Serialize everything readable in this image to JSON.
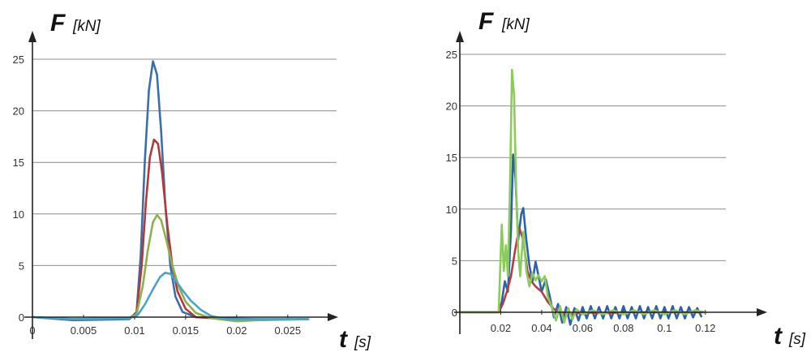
{
  "chart_data": [
    {
      "type": "line",
      "ylabel": "F",
      "yunit": "[kN]",
      "xlabel": "t",
      "xunit": "[s]",
      "xlim": [
        0,
        0.027
      ],
      "ylim": [
        0,
        25
      ],
      "x_ticks": [
        "0",
        "0.005",
        "0.01",
        "0.015",
        "0.02",
        "0.025"
      ],
      "y_ticks": [
        "0",
        "5",
        "10",
        "15",
        "20",
        "25"
      ],
      "grid": "horizontal",
      "series": [
        {
          "color": "#3a6fa8",
          "points": [
            [
              0,
              0
            ],
            [
              0.004,
              -0.3
            ],
            [
              0.0095,
              -0.2
            ],
            [
              0.0102,
              0.5
            ],
            [
              0.0106,
              6
            ],
            [
              0.011,
              15
            ],
            [
              0.0114,
              22
            ],
            [
              0.0118,
              24.8
            ],
            [
              0.0122,
              23.5
            ],
            [
              0.0126,
              18
            ],
            [
              0.013,
              11
            ],
            [
              0.0135,
              5
            ],
            [
              0.014,
              2
            ],
            [
              0.0147,
              0.5
            ],
            [
              0.016,
              0
            ],
            [
              0.018,
              -0.1
            ],
            [
              0.022,
              -0.2
            ],
            [
              0.027,
              -0.2
            ]
          ]
        },
        {
          "color": "#b03a3a",
          "points": [
            [
              0,
              0
            ],
            [
              0.004,
              -0.2
            ],
            [
              0.0095,
              -0.1
            ],
            [
              0.0102,
              0.4
            ],
            [
              0.0107,
              5
            ],
            [
              0.0111,
              11
            ],
            [
              0.0115,
              15.5
            ],
            [
              0.0119,
              17.2
            ],
            [
              0.0123,
              16.8
            ],
            [
              0.0127,
              14
            ],
            [
              0.0132,
              9
            ],
            [
              0.0137,
              5
            ],
            [
              0.0142,
              2.5
            ],
            [
              0.015,
              0.8
            ],
            [
              0.016,
              0
            ],
            [
              0.018,
              -0.1
            ],
            [
              0.021,
              -0.3
            ],
            [
              0.027,
              -0.2
            ]
          ]
        },
        {
          "color": "#8bb04c",
          "points": [
            [
              0,
              0
            ],
            [
              0.004,
              -0.2
            ],
            [
              0.0095,
              -0.1
            ],
            [
              0.0102,
              0.3
            ],
            [
              0.0108,
              3
            ],
            [
              0.0113,
              6.5
            ],
            [
              0.0118,
              9.2
            ],
            [
              0.0122,
              9.9
            ],
            [
              0.0126,
              9.4
            ],
            [
              0.0131,
              7.5
            ],
            [
              0.0137,
              5
            ],
            [
              0.0143,
              3
            ],
            [
              0.015,
              1.5
            ],
            [
              0.016,
              0.4
            ],
            [
              0.0175,
              -0.1
            ],
            [
              0.02,
              -0.4
            ],
            [
              0.022,
              -0.3
            ],
            [
              0.027,
              -0.2
            ]
          ]
        },
        {
          "color": "#4aa3c8",
          "points": [
            [
              0,
              0
            ],
            [
              0.004,
              -0.2
            ],
            [
              0.0095,
              -0.1
            ],
            [
              0.0103,
              0.2
            ],
            [
              0.011,
              1.2
            ],
            [
              0.0118,
              2.7
            ],
            [
              0.0125,
              3.9
            ],
            [
              0.013,
              4.3
            ],
            [
              0.0135,
              4.2
            ],
            [
              0.014,
              3.6
            ],
            [
              0.0147,
              2.6
            ],
            [
              0.0155,
              1.6
            ],
            [
              0.0165,
              0.7
            ],
            [
              0.0175,
              0.1
            ],
            [
              0.019,
              -0.2
            ],
            [
              0.027,
              -0.2
            ]
          ]
        }
      ]
    },
    {
      "type": "line",
      "ylabel": "F",
      "yunit": "[kN]",
      "xlabel": "t",
      "xunit": "[s]",
      "xlim": [
        0,
        0.13
      ],
      "ylim": [
        0,
        25
      ],
      "x_ticks": [
        "0.02",
        "0.04",
        "0.06",
        "0.08",
        "0.1",
        "0.12"
      ],
      "y_ticks": [
        "0",
        "5",
        "10",
        "15",
        "20",
        "25"
      ],
      "grid": "horizontal",
      "series": [
        {
          "color": "#2a62b0",
          "points": [
            [
              0,
              0
            ],
            [
              0.019,
              0
            ],
            [
              0.0205,
              1
            ],
            [
              0.022,
              3
            ],
            [
              0.0235,
              2
            ],
            [
              0.025,
              8
            ],
            [
              0.026,
              15.3
            ],
            [
              0.0272,
              13
            ],
            [
              0.0285,
              7
            ],
            [
              0.03,
              9.5
            ],
            [
              0.031,
              10.1
            ],
            [
              0.0325,
              7
            ],
            [
              0.034,
              4.5
            ],
            [
              0.0355,
              3
            ],
            [
              0.037,
              4.9
            ],
            [
              0.0385,
              3.5
            ],
            [
              0.04,
              2
            ],
            [
              0.042,
              3.2
            ],
            [
              0.044,
              1.5
            ],
            [
              0.046,
              -0.5
            ],
            [
              0.048,
              0.8
            ],
            [
              0.05,
              -1
            ],
            [
              0.052,
              0.5
            ],
            [
              0.054,
              -1.2
            ],
            [
              0.056,
              0.4
            ],
            [
              0.058,
              -0.8
            ],
            [
              0.06,
              0.5
            ],
            [
              0.062,
              -0.6
            ],
            [
              0.064,
              0.6
            ],
            [
              0.066,
              -0.6
            ],
            [
              0.068,
              0.5
            ],
            [
              0.07,
              -0.6
            ],
            [
              0.072,
              0.6
            ],
            [
              0.074,
              -0.6
            ],
            [
              0.076,
              0.5
            ],
            [
              0.078,
              -0.6
            ],
            [
              0.08,
              0.6
            ],
            [
              0.082,
              -0.6
            ],
            [
              0.084,
              0.5
            ],
            [
              0.086,
              -0.6
            ],
            [
              0.088,
              0.6
            ],
            [
              0.09,
              -0.6
            ],
            [
              0.092,
              0.5
            ],
            [
              0.094,
              -0.6
            ],
            [
              0.096,
              0.6
            ],
            [
              0.098,
              -0.6
            ],
            [
              0.1,
              0.5
            ],
            [
              0.102,
              -0.6
            ],
            [
              0.104,
              0.6
            ],
            [
              0.106,
              -0.6
            ],
            [
              0.108,
              0.5
            ],
            [
              0.11,
              -0.6
            ],
            [
              0.112,
              0.5
            ],
            [
              0.114,
              -0.5
            ],
            [
              0.116,
              0.4
            ],
            [
              0.118,
              -0.4
            ]
          ]
        },
        {
          "color": "#b04040",
          "points": [
            [
              0,
              0
            ],
            [
              0.019,
              0
            ],
            [
              0.021,
              0.8
            ],
            [
              0.023,
              2
            ],
            [
              0.025,
              3.5
            ],
            [
              0.027,
              6
            ],
            [
              0.029,
              8.2
            ],
            [
              0.031,
              7
            ],
            [
              0.033,
              4
            ],
            [
              0.035,
              3
            ],
            [
              0.037,
              2.5
            ],
            [
              0.04,
              2
            ],
            [
              0.043,
              1
            ],
            [
              0.046,
              0.3
            ],
            [
              0.05,
              0
            ],
            [
              0.055,
              -0.2
            ],
            [
              0.06,
              0
            ],
            [
              0.07,
              -0.1
            ],
            [
              0.08,
              0
            ],
            [
              0.1,
              0
            ],
            [
              0.12,
              0
            ]
          ]
        },
        {
          "color": "#8ccb5a",
          "points": [
            [
              0,
              0
            ],
            [
              0.019,
              0
            ],
            [
              0.0205,
              8.5
            ],
            [
              0.0215,
              4
            ],
            [
              0.0225,
              6.5
            ],
            [
              0.0235,
              3.5
            ],
            [
              0.0245,
              12
            ],
            [
              0.0255,
              23.5
            ],
            [
              0.0265,
              21
            ],
            [
              0.0275,
              12
            ],
            [
              0.0285,
              6
            ],
            [
              0.0295,
              3.5
            ],
            [
              0.031,
              7.8
            ],
            [
              0.0325,
              4
            ],
            [
              0.034,
              2.5
            ],
            [
              0.0355,
              3.8
            ],
            [
              0.037,
              3.1
            ],
            [
              0.0385,
              3.6
            ],
            [
              0.04,
              3
            ],
            [
              0.0415,
              3.5
            ],
            [
              0.043,
              1.5
            ],
            [
              0.045,
              0.5
            ],
            [
              0.047,
              -0.8
            ],
            [
              0.049,
              0.6
            ],
            [
              0.051,
              -1
            ],
            [
              0.053,
              0.4
            ],
            [
              0.055,
              -0.7
            ],
            [
              0.057,
              0.3
            ],
            [
              0.06,
              -0.2
            ],
            [
              0.065,
              0.2
            ],
            [
              0.07,
              -0.2
            ],
            [
              0.075,
              0.2
            ],
            [
              0.08,
              -0.2
            ],
            [
              0.085,
              0.2
            ],
            [
              0.09,
              -0.2
            ],
            [
              0.095,
              0.2
            ],
            [
              0.1,
              -0.2
            ],
            [
              0.105,
              0.2
            ],
            [
              0.11,
              -0.2
            ],
            [
              0.115,
              0.2
            ],
            [
              0.12,
              0
            ]
          ]
        }
      ]
    }
  ]
}
